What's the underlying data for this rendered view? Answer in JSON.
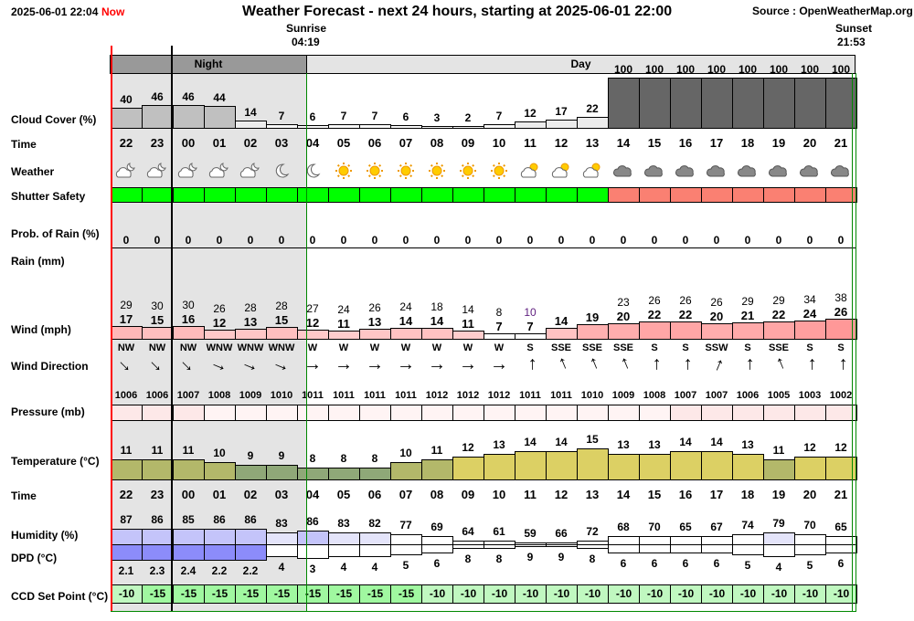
{
  "header": {
    "datetime": "2025-06-01 22:04",
    "now": "Now",
    "title": "Weather Forecast - next 24 hours, starting at 2025-06-01 22:00",
    "source": "Source : OpenWeatherMap.org"
  },
  "sun": {
    "sunrise_label": "Sunrise",
    "sunrise": "04:19",
    "sunset_label": "Sunset",
    "sunset": "21:53"
  },
  "bands": {
    "night": "Night",
    "day": "Day"
  },
  "labels": {
    "cloud": "Cloud Cover (%)",
    "time": "Time",
    "weather": "Weather",
    "shutter": "Shutter Safety",
    "prob_rain": "Prob. of Rain (%)",
    "rain": "Rain (mm)",
    "wind": "Wind (mph)",
    "wind_dir": "Wind Direction",
    "pressure": "Pressure (mb)",
    "temperature": "Temperature (°C)",
    "time2": "Time",
    "humidity": "Humidity (%)",
    "dpd": "DPD (°C)",
    "ccd": "CCD Set Point (°C)"
  },
  "colors": {
    "safe": "#00ff00",
    "unsafe": "#fa8072",
    "night_bg": "#e4e4e4",
    "now_line": "#ff0000",
    "sun_line": "#008000"
  },
  "chart_data": {
    "type": "table",
    "title": "Weather Forecast - next 24 hours, starting at 2025-06-01 22:00",
    "hours": [
      "22",
      "23",
      "00",
      "01",
      "02",
      "03",
      "04",
      "05",
      "06",
      "07",
      "08",
      "09",
      "10",
      "11",
      "12",
      "13",
      "14",
      "15",
      "16",
      "17",
      "18",
      "19",
      "20",
      "21"
    ],
    "cloud_cover": [
      40,
      46,
      46,
      44,
      14,
      7,
      6,
      7,
      7,
      6,
      3,
      2,
      7,
      12,
      17,
      22,
      100,
      100,
      100,
      100,
      100,
      100,
      100,
      100
    ],
    "weather": [
      "partly-cloudy-night",
      "partly-cloudy-night",
      "partly-cloudy-night",
      "partly-cloudy-night",
      "partly-cloudy-night",
      "moon",
      "moon",
      "sun",
      "sun",
      "sun",
      "sun",
      "sun",
      "sun",
      "partly-cloudy-day",
      "partly-cloudy-day",
      "partly-cloudy-day",
      "cloud",
      "cloud",
      "cloud",
      "cloud",
      "cloud",
      "cloud",
      "cloud",
      "cloud"
    ],
    "shutter_safe": [
      true,
      true,
      true,
      true,
      true,
      true,
      true,
      true,
      true,
      true,
      true,
      true,
      true,
      true,
      true,
      true,
      false,
      false,
      false,
      false,
      false,
      false,
      false,
      false
    ],
    "prob_rain": [
      0,
      0,
      0,
      0,
      0,
      0,
      0,
      0,
      0,
      0,
      0,
      0,
      0,
      0,
      0,
      0,
      0,
      0,
      0,
      0,
      0,
      0,
      0,
      0
    ],
    "wind_gust": [
      29,
      30,
      30,
      26,
      28,
      28,
      27,
      24,
      26,
      24,
      18,
      14,
      8,
      10,
      null,
      null,
      23,
      26,
      26,
      26,
      29,
      29,
      34,
      38
    ],
    "wind": [
      17,
      15,
      16,
      12,
      13,
      15,
      12,
      11,
      13,
      14,
      14,
      11,
      7,
      7,
      14,
      19,
      20,
      22,
      22,
      20,
      21,
      22,
      24,
      26
    ],
    "wind_dir": [
      "NW",
      "NW",
      "NW",
      "WNW",
      "WNW",
      "WNW",
      "W",
      "W",
      "W",
      "W",
      "W",
      "W",
      "W",
      "S",
      "SSE",
      "SSE",
      "SSE",
      "S",
      "S",
      "SSW",
      "S",
      "SSE",
      "S",
      "S"
    ],
    "pressure": [
      1006,
      1006,
      1007,
      1008,
      1009,
      1010,
      1011,
      1011,
      1011,
      1011,
      1012,
      1012,
      1012,
      1011,
      1011,
      1010,
      1009,
      1008,
      1007,
      1007,
      1006,
      1005,
      1003,
      1002
    ],
    "temperature": [
      11,
      11,
      11,
      10,
      9,
      9,
      8,
      8,
      8,
      10,
      11,
      12,
      13,
      14,
      14,
      15,
      13,
      13,
      14,
      14,
      13,
      11,
      12,
      12
    ],
    "humidity": [
      87,
      86,
      85,
      86,
      86,
      83,
      86,
      83,
      82,
      77,
      69,
      64,
      61,
      59,
      66,
      72,
      68,
      70,
      65,
      67,
      74,
      79,
      70,
      65
    ],
    "dpd": [
      "2.1",
      "2.3",
      "2.4",
      "2.2",
      "2.2",
      "4",
      "3",
      "4",
      "4",
      "5",
      "6",
      "8",
      "8",
      "9",
      "9",
      "8",
      "6",
      "6",
      "6",
      "6",
      "5",
      "4",
      "5",
      "6"
    ],
    "ccd_setpoint": [
      -10,
      -15,
      -15,
      -15,
      -15,
      -15,
      -15,
      -15,
      -15,
      -15,
      -10,
      -10,
      -10,
      -10,
      -10,
      -10,
      -10,
      -10,
      -10,
      -10,
      -10,
      -10,
      -10,
      -10
    ]
  }
}
